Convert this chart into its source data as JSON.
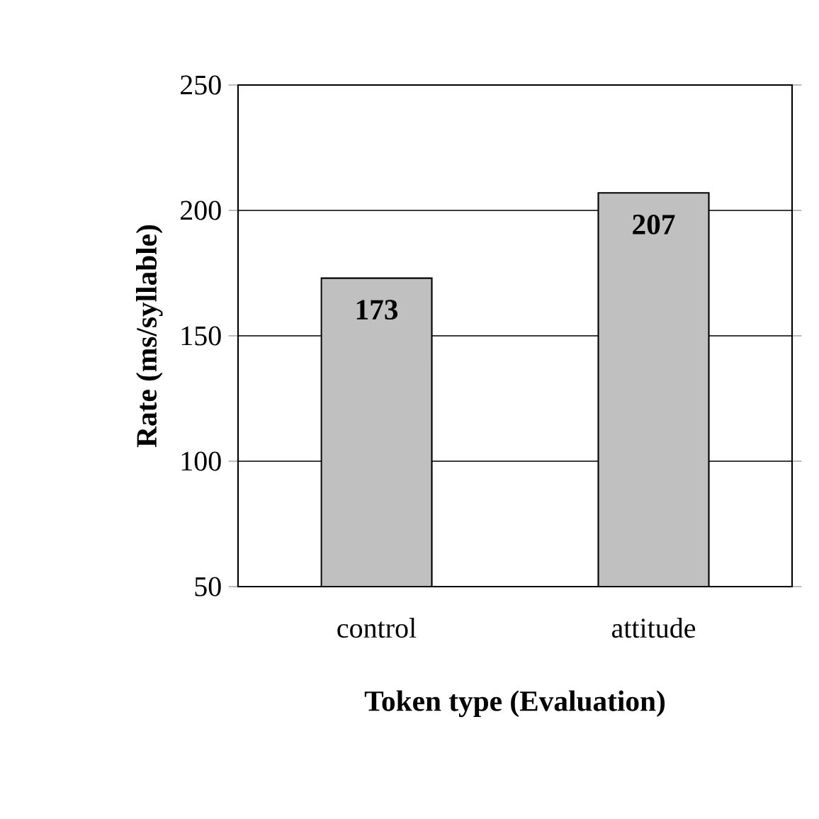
{
  "chart_data": {
    "type": "bar",
    "xlabel": "Token type (Evaluation)",
    "ylabel": "Rate (ms/syllable)",
    "categories": [
      "control",
      "attitude"
    ],
    "values": [
      173,
      207
    ],
    "color": "#c0c0c0",
    "ylim": [
      50,
      250
    ],
    "yticks": [
      50,
      100,
      150,
      200,
      250
    ],
    "grid": "y",
    "data_labels": true
  }
}
